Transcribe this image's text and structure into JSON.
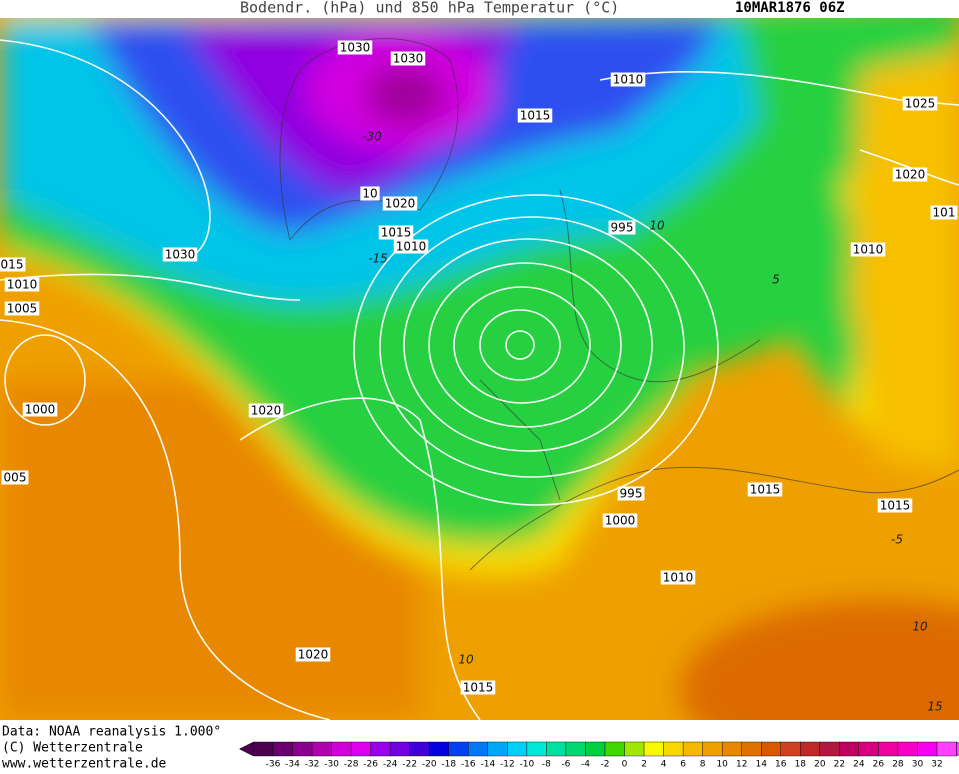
{
  "header": {
    "title": "Bodendr. (hPa) und 850 hPa Temperatur (°C)",
    "date": "10MAR1876 06Z"
  },
  "map": {
    "isobar_labels": [
      "1030",
      "1030",
      "1010",
      "1015",
      "1025",
      "1020",
      "101",
      "10",
      "1020",
      "995",
      "1015",
      "1010",
      "1030",
      "1010",
      "015",
      "1010",
      "1005",
      "1000",
      "1020",
      "005",
      "995",
      "1015",
      "1015",
      "1000",
      "1010",
      "1020",
      "1015"
    ],
    "temperature_labels": [
      "-30",
      "-15",
      "10",
      "5",
      "-5",
      "10",
      "10",
      "15"
    ]
  },
  "footer": {
    "lines": [
      "Data: NOAA reanalysis 1.000°",
      "(C) Wetterzentrale",
      "www.wetterzentrale.de"
    ]
  },
  "colorbar": {
    "labels": [
      -36,
      -34,
      -32,
      -30,
      -28,
      -26,
      -24,
      -22,
      -20,
      -18,
      -16,
      -14,
      -12,
      -10,
      -8,
      -6,
      -4,
      -2,
      0,
      2,
      4,
      6,
      8,
      10,
      12,
      14,
      16,
      18,
      20,
      22,
      24,
      26,
      28,
      30,
      32
    ]
  }
}
